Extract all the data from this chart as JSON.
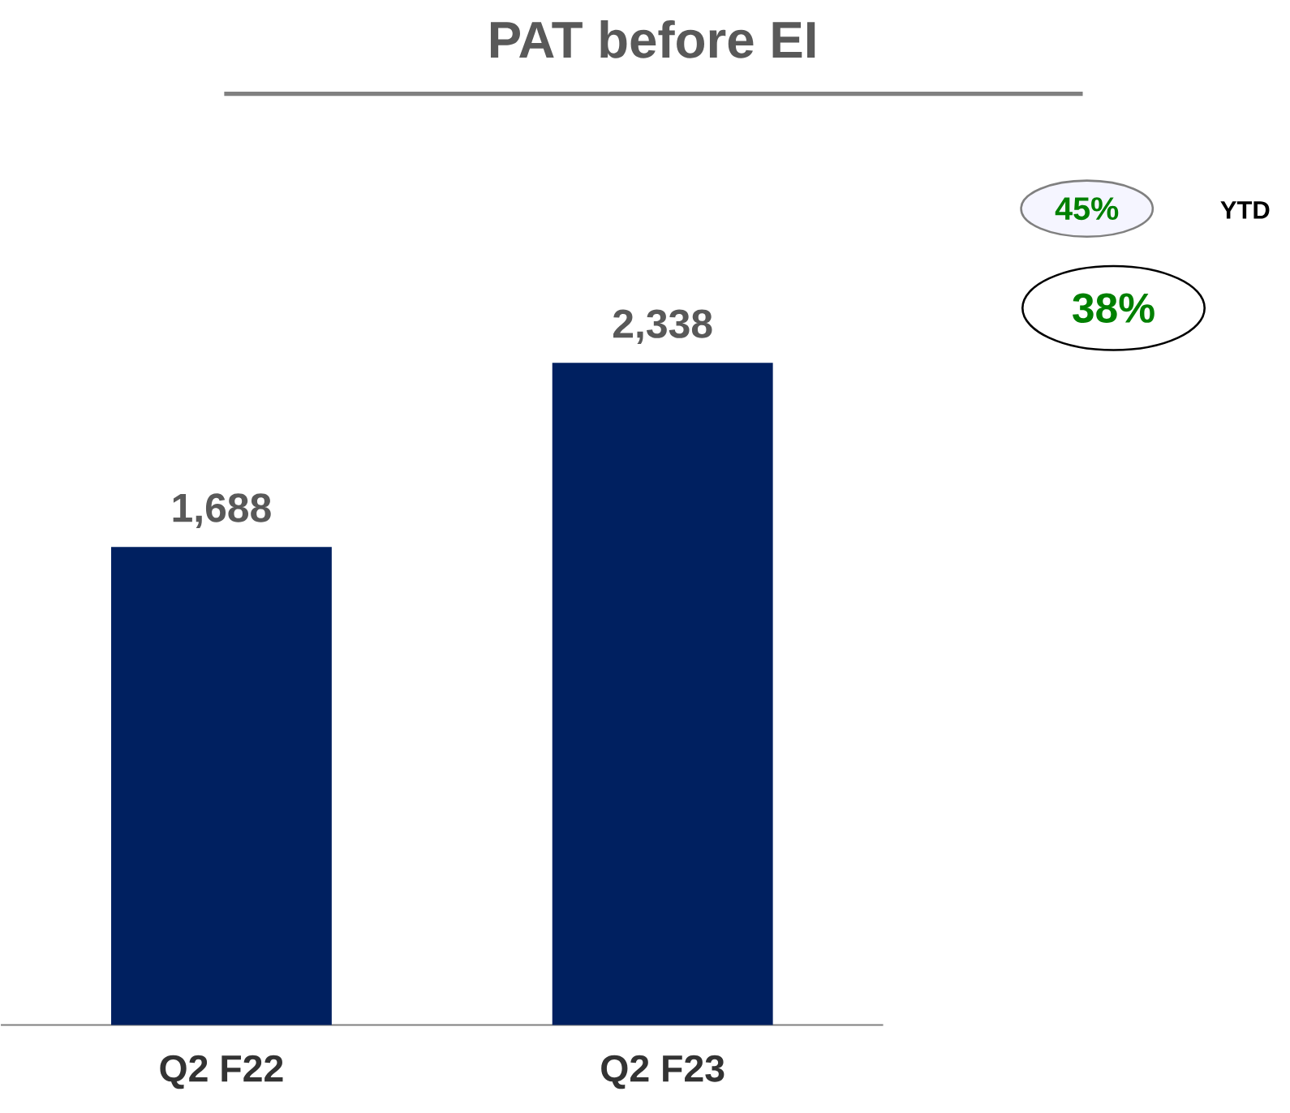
{
  "chart_data": {
    "type": "bar",
    "title": "PAT before EI",
    "categories": [
      "Q2 F22",
      "Q2 F23"
    ],
    "values": [
      1688,
      2338
    ],
    "color": "#002060",
    "value_labels": [
      "1,688",
      "2,338"
    ],
    "annotations": [
      "45%",
      "YTD",
      "38%"
    ]
  }
}
